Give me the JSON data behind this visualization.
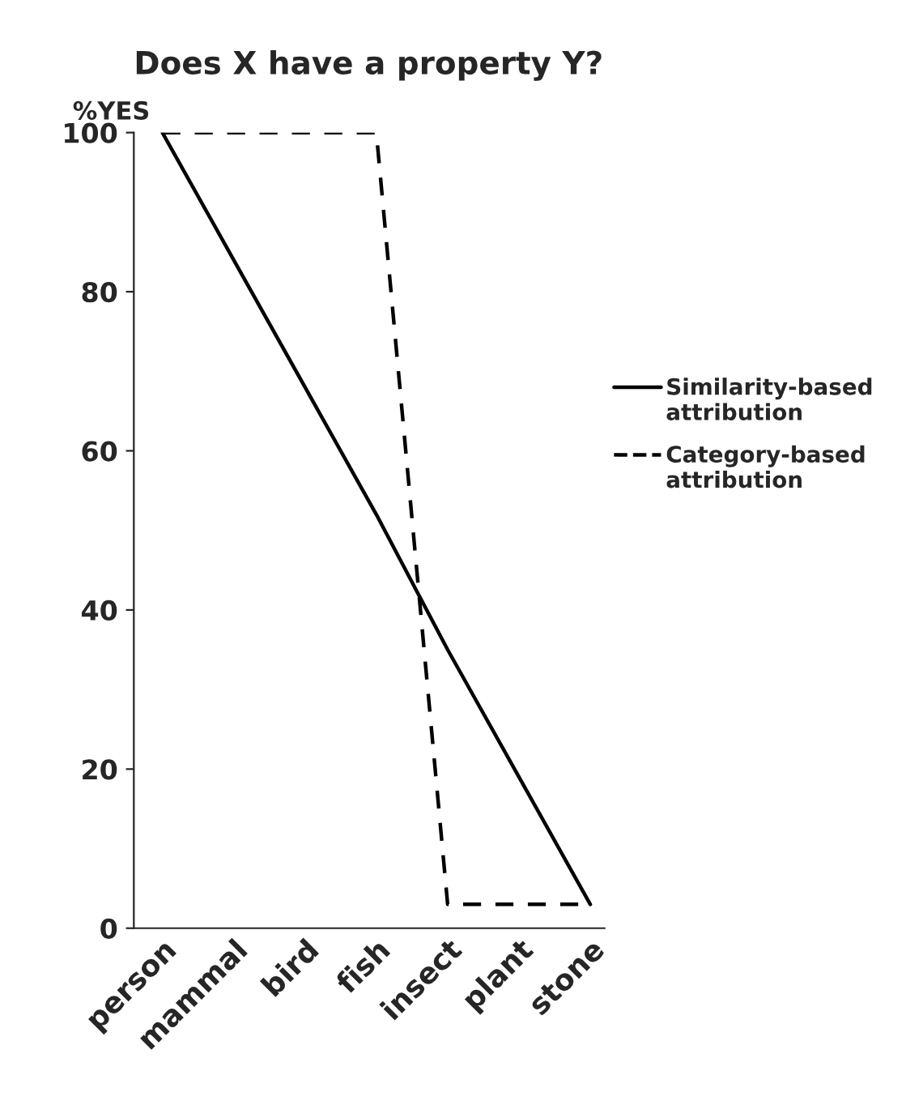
{
  "chart_data": {
    "type": "line",
    "title": "Does X have a property Y?",
    "ylabel": "%YES",
    "categories": [
      "person",
      "mammal",
      "bird",
      "fish",
      "insect",
      "plant",
      "stone"
    ],
    "series": [
      {
        "name": "Similarity-based attribution",
        "color": "#000000",
        "line_style": "solid",
        "values": [
          100,
          84,
          68,
          52,
          35,
          19,
          3
        ]
      },
      {
        "name": "Category-based attribution",
        "color": "#000000",
        "line_style": "dashed",
        "values": [
          100,
          100,
          100,
          100,
          3,
          3,
          3
        ]
      }
    ],
    "ylim": [
      0,
      100
    ],
    "yticks": [
      0,
      20,
      40,
      60,
      80,
      100
    ],
    "grid": false,
    "legend": "right",
    "marker": "none"
  }
}
